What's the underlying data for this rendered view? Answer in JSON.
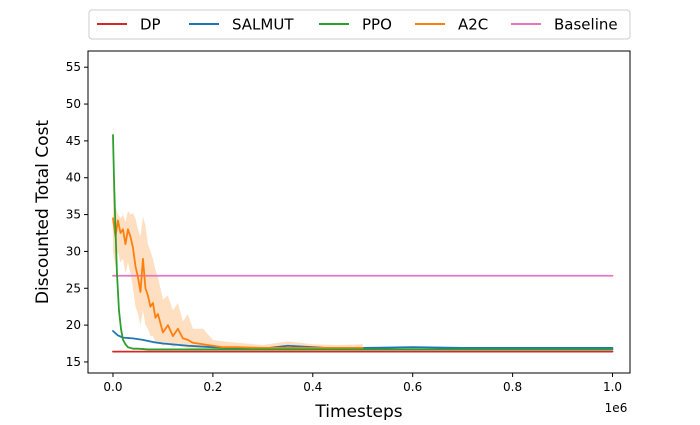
{
  "chart_data": {
    "type": "line",
    "title": "",
    "xlabel": "Timesteps",
    "ylabel": "Discounted Total Cost",
    "x_offset_label": "1e6",
    "xlim": [
      -0.05,
      1.035
    ],
    "ylim": [
      13.5,
      57.2
    ],
    "xticks": [
      0.0,
      0.2,
      0.4,
      0.6,
      0.8,
      1.0
    ],
    "xtick_labels": [
      "0.0",
      "0.2",
      "0.4",
      "0.6",
      "0.8",
      "1.0"
    ],
    "yticks": [
      15,
      20,
      25,
      30,
      35,
      40,
      45,
      50,
      55
    ],
    "ytick_labels": [
      "15",
      "20",
      "25",
      "30",
      "35",
      "40",
      "45",
      "50",
      "55"
    ],
    "grid": false,
    "legend_position": "top",
    "series": [
      {
        "name": "DP",
        "color": "#d62728",
        "x": [
          0.0,
          1.0
        ],
        "y": [
          16.4,
          16.4
        ]
      },
      {
        "name": "SALMUT",
        "color": "#1f77b4",
        "x": [
          0.0,
          0.01,
          0.02,
          0.04,
          0.06,
          0.08,
          0.1,
          0.15,
          0.2,
          0.25,
          0.3,
          0.35,
          0.4,
          0.45,
          0.5,
          0.6,
          0.7,
          0.8,
          0.9,
          1.0
        ],
        "y": [
          19.2,
          18.6,
          18.3,
          18.2,
          18.0,
          17.7,
          17.5,
          17.2,
          17.0,
          16.9,
          16.8,
          17.2,
          17.0,
          16.8,
          16.9,
          17.0,
          16.9,
          16.9,
          16.9,
          16.9
        ]
      },
      {
        "name": "PPO",
        "color": "#2ca02c",
        "x": [
          0.0,
          0.002,
          0.005,
          0.008,
          0.012,
          0.016,
          0.02,
          0.025,
          0.03,
          0.04,
          0.05,
          0.07,
          0.1,
          0.15,
          0.2,
          0.25,
          0.3,
          0.4,
          0.5,
          0.6,
          0.7,
          0.8,
          0.9,
          1.0
        ],
        "y": [
          45.8,
          40.0,
          33.0,
          27.0,
          22.0,
          19.5,
          18.0,
          17.4,
          17.0,
          16.8,
          16.8,
          16.7,
          16.7,
          16.7,
          16.7,
          16.7,
          16.7,
          16.7,
          16.7,
          16.7,
          16.7,
          16.7,
          16.7,
          16.7
        ]
      },
      {
        "name": "A2C",
        "color": "#ff7f0e",
        "band_color": "#ffd1a8",
        "x": [
          0.0,
          0.005,
          0.01,
          0.015,
          0.02,
          0.025,
          0.03,
          0.035,
          0.04,
          0.045,
          0.05,
          0.055,
          0.06,
          0.065,
          0.07,
          0.075,
          0.08,
          0.085,
          0.09,
          0.1,
          0.11,
          0.12,
          0.13,
          0.14,
          0.15,
          0.16,
          0.18,
          0.2,
          0.22,
          0.25,
          0.3,
          0.35,
          0.4,
          0.45,
          0.5
        ],
        "y": [
          34.5,
          32.0,
          34.2,
          32.5,
          33.0,
          31.0,
          33.0,
          32.0,
          30.5,
          28.0,
          26.5,
          24.5,
          29.0,
          25.0,
          24.0,
          22.5,
          23.0,
          21.0,
          21.5,
          19.0,
          20.0,
          18.5,
          19.5,
          18.2,
          18.0,
          17.6,
          17.4,
          17.2,
          17.0,
          17.0,
          16.9,
          16.9,
          16.9,
          16.9,
          16.9
        ],
        "y_low": [
          30.0,
          28.0,
          30.0,
          28.5,
          29.0,
          27.0,
          28.5,
          27.0,
          25.0,
          22.5,
          21.5,
          20.0,
          22.0,
          20.0,
          19.5,
          18.5,
          18.5,
          17.8,
          17.8,
          17.2,
          17.5,
          17.0,
          17.2,
          17.0,
          16.9,
          16.8,
          16.7,
          16.7,
          16.7,
          16.7,
          16.7,
          16.7,
          16.7,
          16.7,
          16.7
        ],
        "y_high": [
          47.0,
          36.0,
          35.0,
          34.5,
          35.0,
          34.0,
          35.5,
          35.0,
          35.2,
          34.5,
          33.0,
          32.0,
          34.8,
          33.5,
          31.0,
          30.0,
          29.0,
          27.5,
          26.5,
          23.5,
          24.0,
          22.0,
          23.0,
          20.5,
          21.5,
          19.5,
          19.5,
          18.0,
          17.8,
          17.6,
          17.3,
          17.8,
          17.4,
          17.3,
          17.4
        ]
      },
      {
        "name": "Baseline",
        "color": "#e377c2",
        "x": [
          0.0,
          1.0
        ],
        "y": [
          26.7,
          26.7
        ]
      }
    ]
  }
}
